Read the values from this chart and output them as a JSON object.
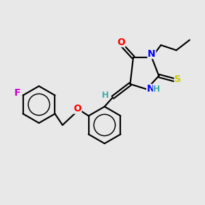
{
  "bg_color": "#e8e8e8",
  "bond_color": "#000000",
  "bond_width": 1.6,
  "atom_colors": {
    "O": "#ff0000",
    "N": "#0000ff",
    "S": "#cccc00",
    "F": "#cc00cc",
    "H": "#44aaaa",
    "C": "#000000"
  },
  "font_size": 9,
  "figsize": [
    3.0,
    3.0
  ],
  "dpi": 100
}
